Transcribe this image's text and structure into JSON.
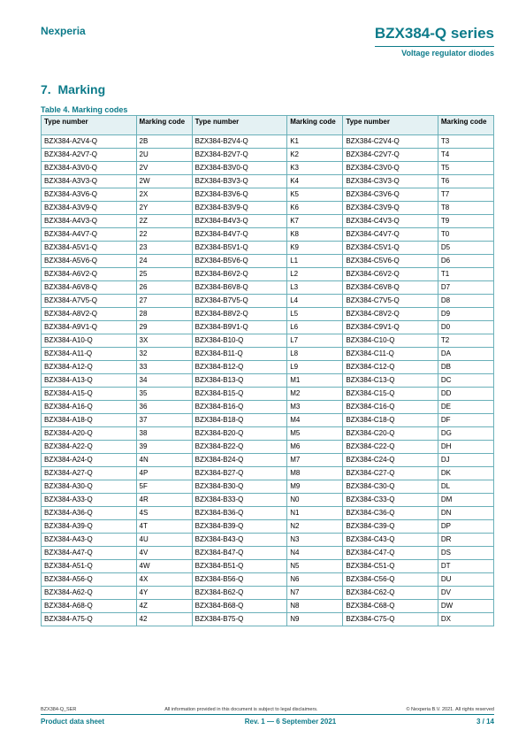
{
  "brand": "Nexperia",
  "product_title": "BZX384-Q series",
  "subtitle": "Voltage regulator diodes",
  "section_number": "7.",
  "section_title": "Marking",
  "table_title": "Table 4. Marking codes",
  "headers": {
    "type": "Type number",
    "code": "Marking code"
  },
  "rows": [
    [
      "BZX384-A2V4-Q",
      "2B",
      "BZX384-B2V4-Q",
      "K1",
      "BZX384-C2V4-Q",
      "T3"
    ],
    [
      "BZX384-A2V7-Q",
      "2U",
      "BZX384-B2V7-Q",
      "K2",
      "BZX384-C2V7-Q",
      "T4"
    ],
    [
      "BZX384-A3V0-Q",
      "2V",
      "BZX384-B3V0-Q",
      "K3",
      "BZX384-C3V0-Q",
      "T5"
    ],
    [
      "BZX384-A3V3-Q",
      "2W",
      "BZX384-B3V3-Q",
      "K4",
      "BZX384-C3V3-Q",
      "T6"
    ],
    [
      "BZX384-A3V6-Q",
      "2X",
      "BZX384-B3V6-Q",
      "K5",
      "BZX384-C3V6-Q",
      "T7"
    ],
    [
      "BZX384-A3V9-Q",
      "2Y",
      "BZX384-B3V9-Q",
      "K6",
      "BZX384-C3V9-Q",
      "T8"
    ],
    [
      "BZX384-A4V3-Q",
      "2Z",
      "BZX384-B4V3-Q",
      "K7",
      "BZX384-C4V3-Q",
      "T9"
    ],
    [
      "BZX384-A4V7-Q",
      "22",
      "BZX384-B4V7-Q",
      "K8",
      "BZX384-C4V7-Q",
      "T0"
    ],
    [
      "BZX384-A5V1-Q",
      "23",
      "BZX384-B5V1-Q",
      "K9",
      "BZX384-C5V1-Q",
      "D5"
    ],
    [
      "BZX384-A5V6-Q",
      "24",
      "BZX384-B5V6-Q",
      "L1",
      "BZX384-C5V6-Q",
      "D6"
    ],
    [
      "BZX384-A6V2-Q",
      "25",
      "BZX384-B6V2-Q",
      "L2",
      "BZX384-C6V2-Q",
      "T1"
    ],
    [
      "BZX384-A6V8-Q",
      "26",
      "BZX384-B6V8-Q",
      "L3",
      "BZX384-C6V8-Q",
      "D7"
    ],
    [
      "BZX384-A7V5-Q",
      "27",
      "BZX384-B7V5-Q",
      "L4",
      "BZX384-C7V5-Q",
      "D8"
    ],
    [
      "BZX384-A8V2-Q",
      "28",
      "BZX384-B8V2-Q",
      "L5",
      "BZX384-C8V2-Q",
      "D9"
    ],
    [
      "BZX384-A9V1-Q",
      "29",
      "BZX384-B9V1-Q",
      "L6",
      "BZX384-C9V1-Q",
      "D0"
    ],
    [
      "BZX384-A10-Q",
      "3X",
      "BZX384-B10-Q",
      "L7",
      "BZX384-C10-Q",
      "T2"
    ],
    [
      "BZX384-A11-Q",
      "32",
      "BZX384-B11-Q",
      "L8",
      "BZX384-C11-Q",
      "DA"
    ],
    [
      "BZX384-A12-Q",
      "33",
      "BZX384-B12-Q",
      "L9",
      "BZX384-C12-Q",
      "DB"
    ],
    [
      "BZX384-A13-Q",
      "34",
      "BZX384-B13-Q",
      "M1",
      "BZX384-C13-Q",
      "DC"
    ],
    [
      "BZX384-A15-Q",
      "35",
      "BZX384-B15-Q",
      "M2",
      "BZX384-C15-Q",
      "DD"
    ],
    [
      "BZX384-A16-Q",
      "36",
      "BZX384-B16-Q",
      "M3",
      "BZX384-C16-Q",
      "DE"
    ],
    [
      "BZX384-A18-Q",
      "37",
      "BZX384-B18-Q",
      "M4",
      "BZX384-C18-Q",
      "DF"
    ],
    [
      "BZX384-A20-Q",
      "38",
      "BZX384-B20-Q",
      "M5",
      "BZX384-C20-Q",
      "DG"
    ],
    [
      "BZX384-A22-Q",
      "39",
      "BZX384-B22-Q",
      "M6",
      "BZX384-C22-Q",
      "DH"
    ],
    [
      "BZX384-A24-Q",
      "4N",
      "BZX384-B24-Q",
      "M7",
      "BZX384-C24-Q",
      "DJ"
    ],
    [
      "BZX384-A27-Q",
      "4P",
      "BZX384-B27-Q",
      "M8",
      "BZX384-C27-Q",
      "DK"
    ],
    [
      "BZX384-A30-Q",
      "5F",
      "BZX384-B30-Q",
      "M9",
      "BZX384-C30-Q",
      "DL"
    ],
    [
      "BZX384-A33-Q",
      "4R",
      "BZX384-B33-Q",
      "N0",
      "BZX384-C33-Q",
      "DM"
    ],
    [
      "BZX384-A36-Q",
      "4S",
      "BZX384-B36-Q",
      "N1",
      "BZX384-C36-Q",
      "DN"
    ],
    [
      "BZX384-A39-Q",
      "4T",
      "BZX384-B39-Q",
      "N2",
      "BZX384-C39-Q",
      "DP"
    ],
    [
      "BZX384-A43-Q",
      "4U",
      "BZX384-B43-Q",
      "N3",
      "BZX384-C43-Q",
      "DR"
    ],
    [
      "BZX384-A47-Q",
      "4V",
      "BZX384-B47-Q",
      "N4",
      "BZX384-C47-Q",
      "DS"
    ],
    [
      "BZX384-A51-Q",
      "4W",
      "BZX384-B51-Q",
      "N5",
      "BZX384-C51-Q",
      "DT"
    ],
    [
      "BZX384-A56-Q",
      "4X",
      "BZX384-B56-Q",
      "N6",
      "BZX384-C56-Q",
      "DU"
    ],
    [
      "BZX384-A62-Q",
      "4Y",
      "BZX384-B62-Q",
      "N7",
      "BZX384-C62-Q",
      "DV"
    ],
    [
      "BZX384-A68-Q",
      "4Z",
      "BZX384-B68-Q",
      "N8",
      "BZX384-C68-Q",
      "DW"
    ],
    [
      "BZX384-A75-Q",
      "42",
      "BZX384-B75-Q",
      "N9",
      "BZX384-C75-Q",
      "DX"
    ]
  ],
  "footer": {
    "doc_ref": "BZX384-Q_SER",
    "disclaimer": "All information provided in this document is subject to legal disclaimers.",
    "copyright": "© Nexperia B.V. 2021. All rights reserved",
    "doc_type": "Product data sheet",
    "revision": "Rev. 1 — 6 September 2021",
    "page": "3 / 14"
  }
}
